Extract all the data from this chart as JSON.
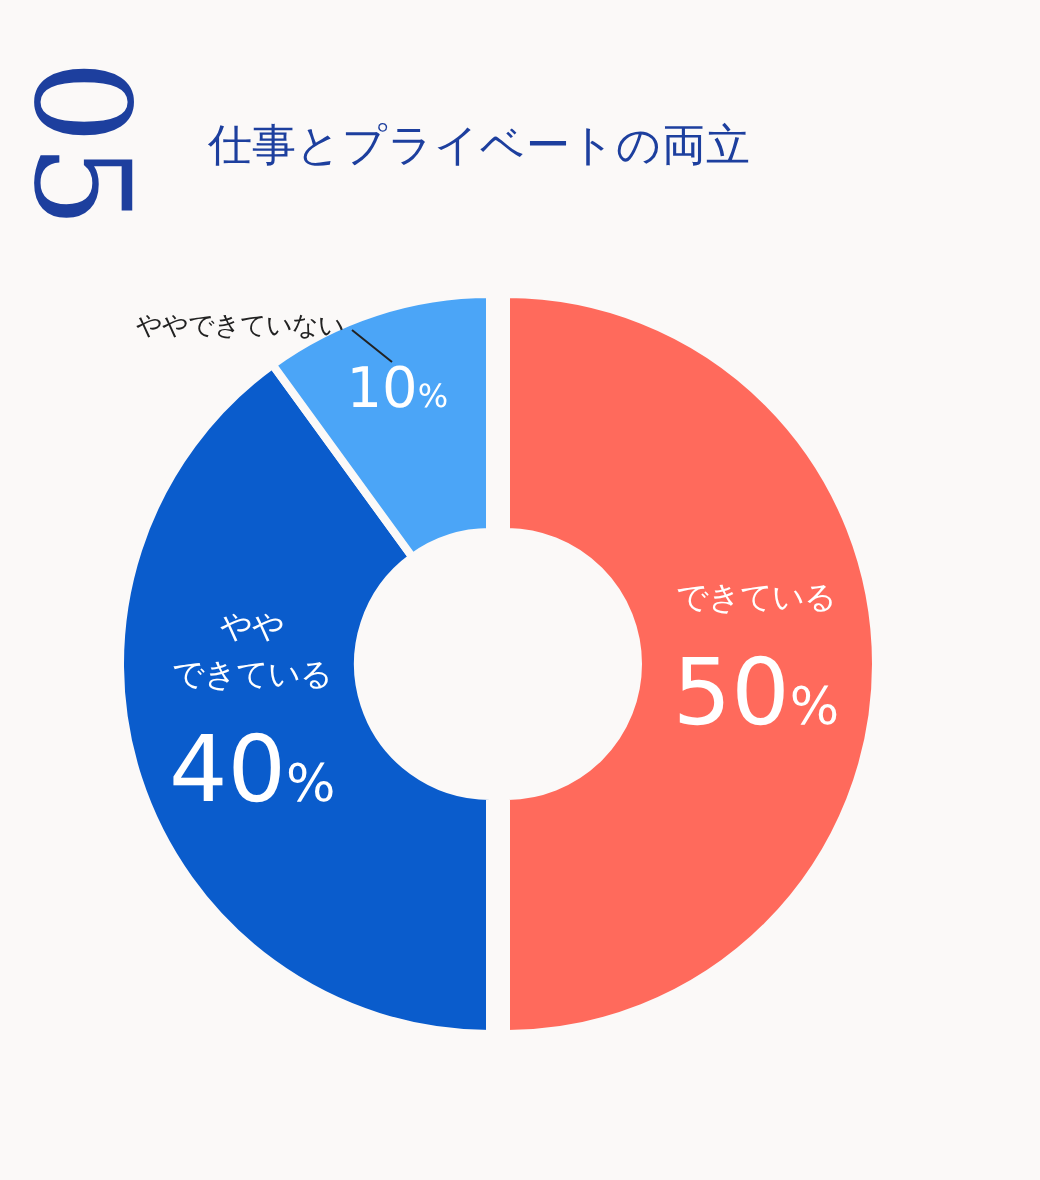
{
  "chart_data": {
    "type": "donut",
    "title": "仕事とプライベートの両立",
    "annotations": [
      "05"
    ],
    "categories": [
      "できている",
      "ややできている",
      "ややできていない"
    ],
    "values": [
      50,
      40,
      10
    ],
    "value_labels": [
      "50%",
      "40%",
      "10%"
    ],
    "colors": [
      "#ff6a5c",
      "#0a5ccc",
      "#4ba5f7"
    ]
  }
}
